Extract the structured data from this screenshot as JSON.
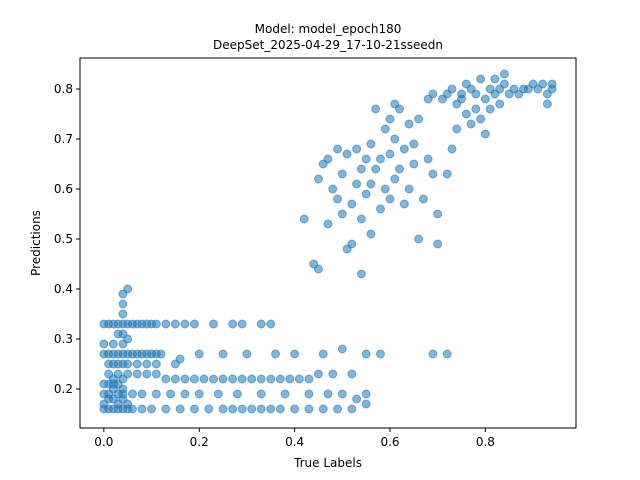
{
  "chart_data": {
    "type": "scatter",
    "title_line1": "Model: model_epoch180",
    "title_line2": "DeepSet_2025-04-29_17-10-21sseedn",
    "xlabel": "True Labels",
    "ylabel": "Predictions",
    "xlim": [
      -0.05,
      0.99
    ],
    "ylim": [
      0.122,
      0.862
    ],
    "xticks": [
      0.0,
      0.2,
      0.4,
      0.6,
      0.8
    ],
    "xtick_labels": [
      "0.0",
      "0.2",
      "0.4",
      "0.6",
      "0.8"
    ],
    "yticks": [
      0.2,
      0.3,
      0.4,
      0.5,
      0.6,
      0.7,
      0.8
    ],
    "ytick_labels": [
      "0.2",
      "0.3",
      "0.4",
      "0.5",
      "0.6",
      "0.7",
      "0.8"
    ],
    "marker_color": "#1f77b4",
    "marker_alpha": 0.55,
    "grid": false,
    "points": [
      [
        0.0,
        0.16
      ],
      [
        0.01,
        0.16
      ],
      [
        0.02,
        0.16
      ],
      [
        0.03,
        0.16
      ],
      [
        0.04,
        0.16
      ],
      [
        0.05,
        0.16
      ],
      [
        0.06,
        0.16
      ],
      [
        0.08,
        0.16
      ],
      [
        0.1,
        0.16
      ],
      [
        0.13,
        0.16
      ],
      [
        0.16,
        0.16
      ],
      [
        0.19,
        0.16
      ],
      [
        0.22,
        0.16
      ],
      [
        0.25,
        0.16
      ],
      [
        0.27,
        0.16
      ],
      [
        0.29,
        0.16
      ],
      [
        0.31,
        0.16
      ],
      [
        0.33,
        0.16
      ],
      [
        0.35,
        0.16
      ],
      [
        0.37,
        0.16
      ],
      [
        0.4,
        0.16
      ],
      [
        0.43,
        0.16
      ],
      [
        0.46,
        0.16
      ],
      [
        0.49,
        0.16
      ],
      [
        0.52,
        0.16
      ],
      [
        0.55,
        0.17
      ],
      [
        0.0,
        0.17
      ],
      [
        0.01,
        0.18
      ],
      [
        0.02,
        0.18
      ],
      [
        0.03,
        0.17
      ],
      [
        0.04,
        0.18
      ],
      [
        0.05,
        0.17
      ],
      [
        0.0,
        0.19
      ],
      [
        0.01,
        0.19
      ],
      [
        0.02,
        0.2
      ],
      [
        0.03,
        0.19
      ],
      [
        0.04,
        0.19
      ],
      [
        0.06,
        0.19
      ],
      [
        0.08,
        0.19
      ],
      [
        0.11,
        0.19
      ],
      [
        0.14,
        0.19
      ],
      [
        0.17,
        0.19
      ],
      [
        0.2,
        0.19
      ],
      [
        0.24,
        0.19
      ],
      [
        0.28,
        0.19
      ],
      [
        0.33,
        0.19
      ],
      [
        0.38,
        0.19
      ],
      [
        0.43,
        0.19
      ],
      [
        0.47,
        0.19
      ],
      [
        0.5,
        0.19
      ],
      [
        0.53,
        0.18
      ],
      [
        0.55,
        0.19
      ],
      [
        0.0,
        0.21
      ],
      [
        0.01,
        0.21
      ],
      [
        0.02,
        0.21
      ],
      [
        0.03,
        0.21
      ],
      [
        0.04,
        0.2
      ],
      [
        0.01,
        0.23
      ],
      [
        0.02,
        0.22
      ],
      [
        0.03,
        0.23
      ],
      [
        0.04,
        0.22
      ],
      [
        0.05,
        0.23
      ],
      [
        0.07,
        0.23
      ],
      [
        0.09,
        0.23
      ],
      [
        0.11,
        0.23
      ],
      [
        0.13,
        0.22
      ],
      [
        0.15,
        0.22
      ],
      [
        0.17,
        0.22
      ],
      [
        0.19,
        0.22
      ],
      [
        0.21,
        0.22
      ],
      [
        0.23,
        0.22
      ],
      [
        0.25,
        0.22
      ],
      [
        0.27,
        0.22
      ],
      [
        0.29,
        0.22
      ],
      [
        0.31,
        0.22
      ],
      [
        0.33,
        0.22
      ],
      [
        0.35,
        0.22
      ],
      [
        0.37,
        0.22
      ],
      [
        0.39,
        0.22
      ],
      [
        0.41,
        0.22
      ],
      [
        0.43,
        0.22
      ],
      [
        0.45,
        0.23
      ],
      [
        0.48,
        0.23
      ],
      [
        0.52,
        0.23
      ],
      [
        0.01,
        0.25
      ],
      [
        0.02,
        0.25
      ],
      [
        0.03,
        0.25
      ],
      [
        0.04,
        0.25
      ],
      [
        0.05,
        0.25
      ],
      [
        0.07,
        0.25
      ],
      [
        0.09,
        0.25
      ],
      [
        0.11,
        0.25
      ],
      [
        0.15,
        0.25
      ],
      [
        0.16,
        0.26
      ],
      [
        0.0,
        0.27
      ],
      [
        0.01,
        0.27
      ],
      [
        0.02,
        0.27
      ],
      [
        0.03,
        0.27
      ],
      [
        0.04,
        0.27
      ],
      [
        0.05,
        0.27
      ],
      [
        0.06,
        0.27
      ],
      [
        0.07,
        0.27
      ],
      [
        0.08,
        0.27
      ],
      [
        0.09,
        0.27
      ],
      [
        0.1,
        0.27
      ],
      [
        0.11,
        0.27
      ],
      [
        0.12,
        0.27
      ],
      [
        0.2,
        0.27
      ],
      [
        0.25,
        0.27
      ],
      [
        0.3,
        0.27
      ],
      [
        0.36,
        0.27
      ],
      [
        0.4,
        0.27
      ],
      [
        0.46,
        0.27
      ],
      [
        0.5,
        0.28
      ],
      [
        0.55,
        0.27
      ],
      [
        0.58,
        0.27
      ],
      [
        0.69,
        0.27
      ],
      [
        0.72,
        0.27
      ],
      [
        0.0,
        0.29
      ],
      [
        0.02,
        0.29
      ],
      [
        0.04,
        0.29
      ],
      [
        0.05,
        0.3
      ],
      [
        0.03,
        0.31
      ],
      [
        0.04,
        0.31
      ],
      [
        0.0,
        0.33
      ],
      [
        0.01,
        0.33
      ],
      [
        0.02,
        0.33
      ],
      [
        0.03,
        0.33
      ],
      [
        0.04,
        0.33
      ],
      [
        0.05,
        0.33
      ],
      [
        0.06,
        0.33
      ],
      [
        0.07,
        0.33
      ],
      [
        0.08,
        0.33
      ],
      [
        0.09,
        0.33
      ],
      [
        0.1,
        0.33
      ],
      [
        0.11,
        0.33
      ],
      [
        0.13,
        0.33
      ],
      [
        0.15,
        0.33
      ],
      [
        0.17,
        0.33
      ],
      [
        0.19,
        0.33
      ],
      [
        0.23,
        0.33
      ],
      [
        0.27,
        0.33
      ],
      [
        0.29,
        0.33
      ],
      [
        0.33,
        0.33
      ],
      [
        0.35,
        0.33
      ],
      [
        0.04,
        0.35
      ],
      [
        0.04,
        0.37
      ],
      [
        0.04,
        0.39
      ],
      [
        0.05,
        0.4
      ],
      [
        0.42,
        0.54
      ],
      [
        0.44,
        0.45
      ],
      [
        0.45,
        0.44
      ],
      [
        0.45,
        0.62
      ],
      [
        0.46,
        0.65
      ],
      [
        0.47,
        0.66
      ],
      [
        0.47,
        0.53
      ],
      [
        0.48,
        0.6
      ],
      [
        0.49,
        0.58
      ],
      [
        0.49,
        0.68
      ],
      [
        0.5,
        0.63
      ],
      [
        0.5,
        0.55
      ],
      [
        0.51,
        0.67
      ],
      [
        0.51,
        0.48
      ],
      [
        0.52,
        0.49
      ],
      [
        0.52,
        0.57
      ],
      [
        0.53,
        0.61
      ],
      [
        0.53,
        0.68
      ],
      [
        0.54,
        0.64
      ],
      [
        0.54,
        0.43
      ],
      [
        0.54,
        0.54
      ],
      [
        0.55,
        0.66
      ],
      [
        0.55,
        0.59
      ],
      [
        0.56,
        0.69
      ],
      [
        0.56,
        0.61
      ],
      [
        0.56,
        0.51
      ],
      [
        0.57,
        0.76
      ],
      [
        0.57,
        0.64
      ],
      [
        0.58,
        0.56
      ],
      [
        0.58,
        0.66
      ],
      [
        0.59,
        0.6
      ],
      [
        0.59,
        0.72
      ],
      [
        0.6,
        0.58
      ],
      [
        0.6,
        0.67
      ],
      [
        0.6,
        0.74
      ],
      [
        0.61,
        0.7
      ],
      [
        0.61,
        0.62
      ],
      [
        0.61,
        0.77
      ],
      [
        0.62,
        0.76
      ],
      [
        0.62,
        0.64
      ],
      [
        0.63,
        0.68
      ],
      [
        0.63,
        0.57
      ],
      [
        0.64,
        0.73
      ],
      [
        0.64,
        0.6
      ],
      [
        0.65,
        0.69
      ],
      [
        0.65,
        0.65
      ],
      [
        0.66,
        0.5
      ],
      [
        0.66,
        0.74
      ],
      [
        0.67,
        0.58
      ],
      [
        0.68,
        0.66
      ],
      [
        0.68,
        0.78
      ],
      [
        0.69,
        0.63
      ],
      [
        0.69,
        0.79
      ],
      [
        0.7,
        0.55
      ],
      [
        0.7,
        0.49
      ],
      [
        0.71,
        0.78
      ],
      [
        0.72,
        0.63
      ],
      [
        0.72,
        0.79
      ],
      [
        0.73,
        0.68
      ],
      [
        0.73,
        0.8
      ],
      [
        0.74,
        0.77
      ],
      [
        0.74,
        0.72
      ],
      [
        0.75,
        0.78
      ],
      [
        0.75,
        0.79
      ],
      [
        0.76,
        0.81
      ],
      [
        0.76,
        0.75
      ],
      [
        0.77,
        0.8
      ],
      [
        0.77,
        0.73
      ],
      [
        0.78,
        0.79
      ],
      [
        0.78,
        0.76
      ],
      [
        0.79,
        0.82
      ],
      [
        0.79,
        0.74
      ],
      [
        0.8,
        0.78
      ],
      [
        0.8,
        0.71
      ],
      [
        0.81,
        0.8
      ],
      [
        0.81,
        0.76
      ],
      [
        0.82,
        0.79
      ],
      [
        0.82,
        0.82
      ],
      [
        0.83,
        0.8
      ],
      [
        0.83,
        0.77
      ],
      [
        0.84,
        0.81
      ],
      [
        0.84,
        0.83
      ],
      [
        0.85,
        0.79
      ],
      [
        0.86,
        0.8
      ],
      [
        0.87,
        0.79
      ],
      [
        0.88,
        0.8
      ],
      [
        0.89,
        0.8
      ],
      [
        0.9,
        0.81
      ],
      [
        0.91,
        0.8
      ],
      [
        0.92,
        0.81
      ],
      [
        0.93,
        0.79
      ],
      [
        0.93,
        0.77
      ],
      [
        0.94,
        0.8
      ],
      [
        0.94,
        0.81
      ]
    ]
  }
}
